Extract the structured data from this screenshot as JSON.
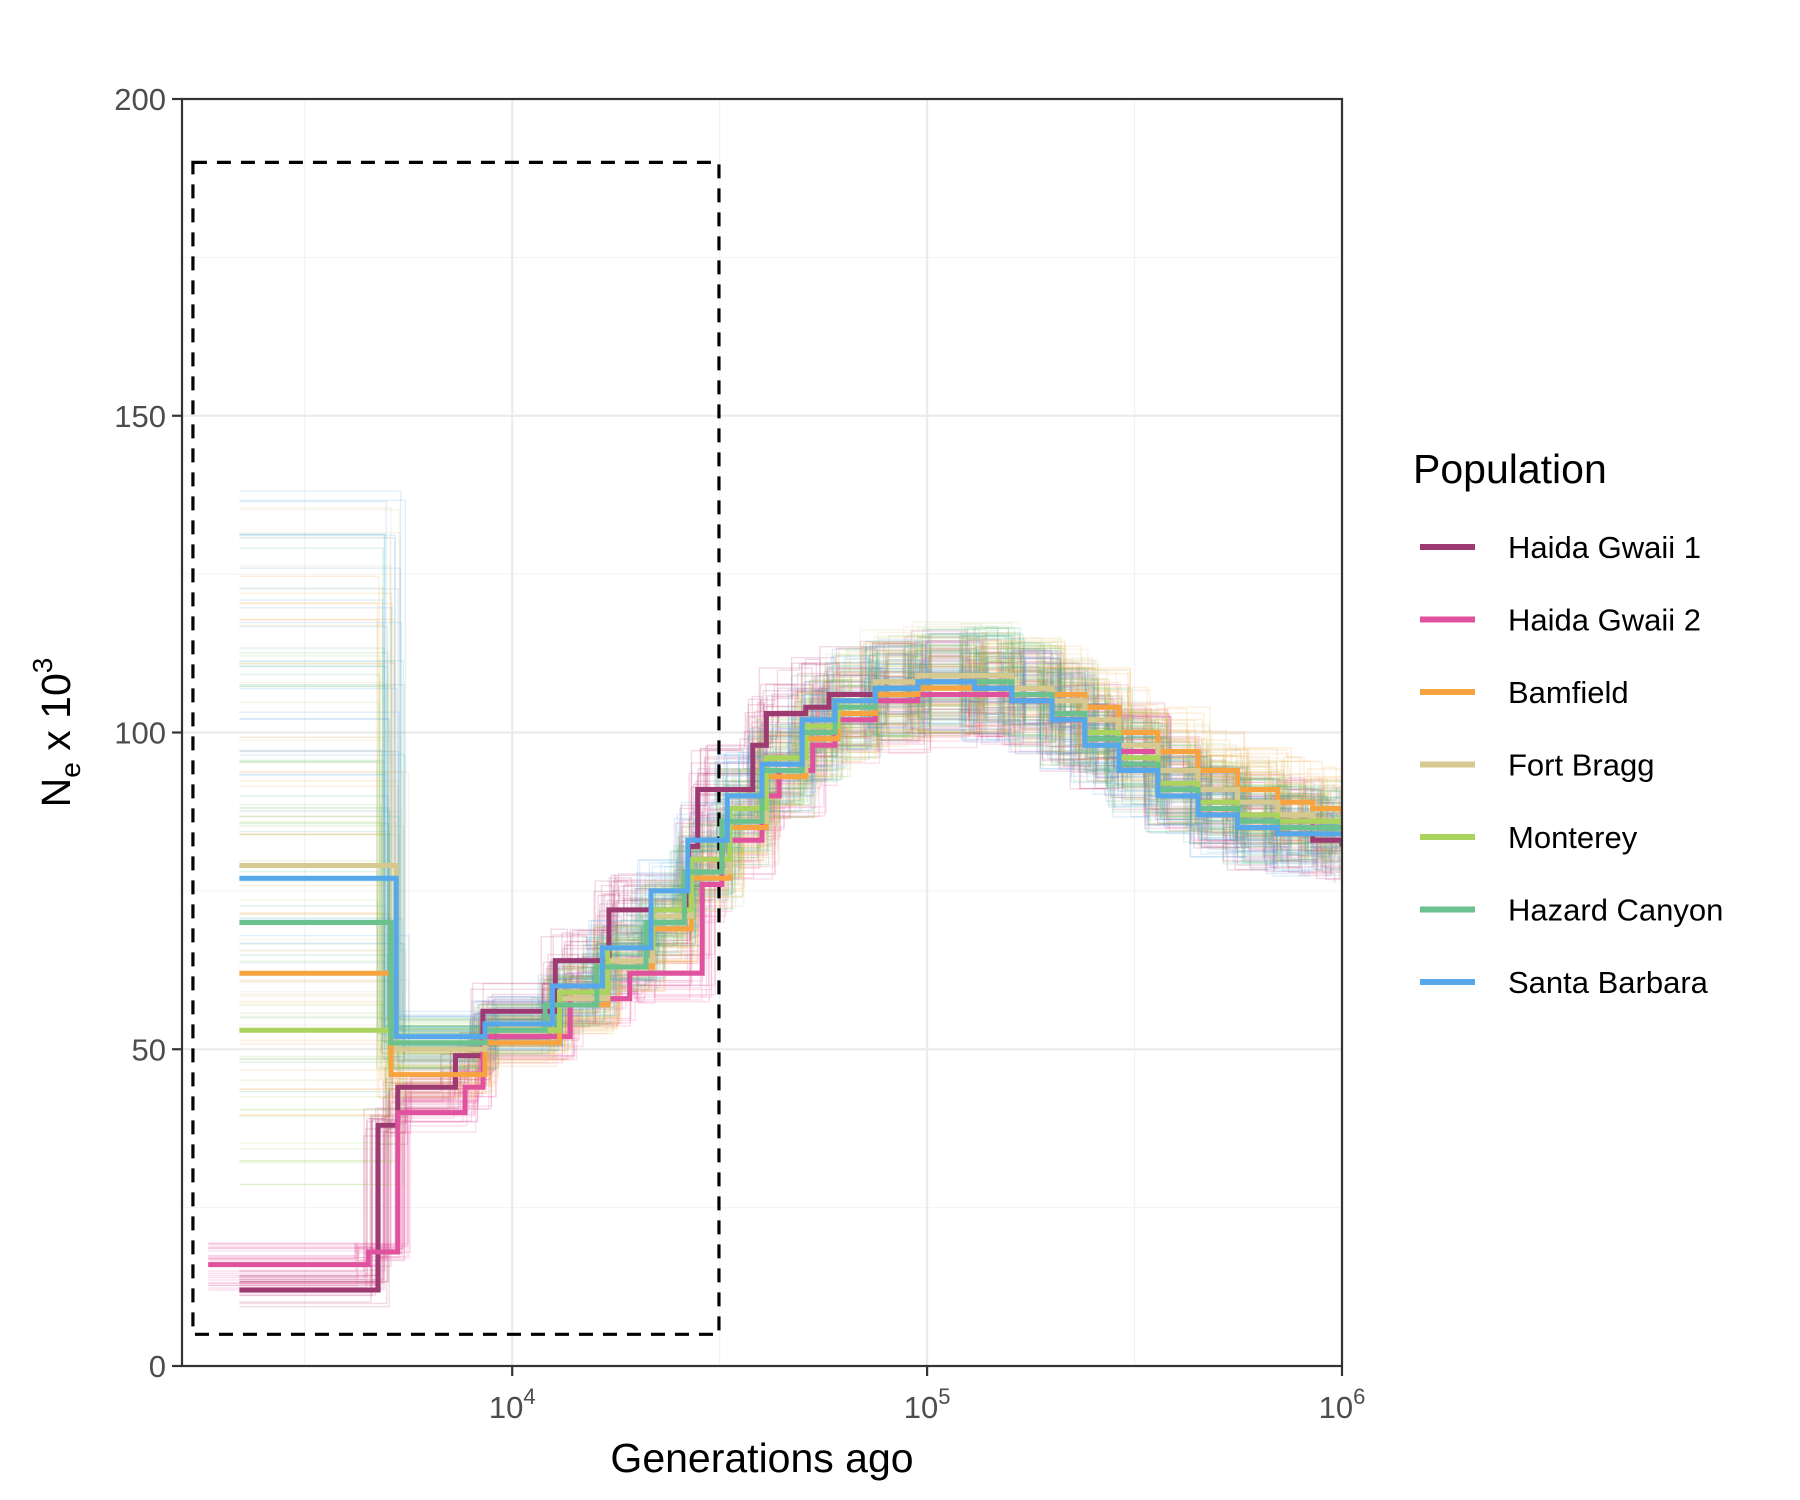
{
  "chart_data": {
    "type": "line",
    "subtype": "step",
    "xlabel": "Generations ago",
    "ylabel": {
      "base": "N",
      "subscript": "e",
      "middle": " x 10",
      "superscript": "3"
    },
    "x_scale": "log10",
    "xlim": [
      1600,
      1000000
    ],
    "ylim": [
      0,
      200
    ],
    "x_ticks": [
      {
        "value": 10000,
        "base": "10",
        "exp": "4"
      },
      {
        "value": 100000,
        "base": "10",
        "exp": "5"
      },
      {
        "value": 1000000,
        "base": "10",
        "exp": "6"
      }
    ],
    "y_ticks": [
      {
        "value": 0,
        "label": "0"
      },
      {
        "value": 50,
        "label": "50"
      },
      {
        "value": 100,
        "label": "100"
      },
      {
        "value": 150,
        "label": "150"
      },
      {
        "value": 200,
        "label": "200"
      }
    ],
    "grid": true,
    "legend": {
      "title": "Population",
      "position": "right"
    },
    "highlight_box": {
      "style": "dashed",
      "x_range": [
        1700,
        31500
      ],
      "y_range": [
        5,
        190
      ]
    },
    "series": [
      {
        "name": "Haida Gwaii 1",
        "color": "#9e3a72",
        "band_color": "#b0185f",
        "x": [
          2200,
          4750,
          5300,
          7300,
          8500,
          12700,
          14200,
          17100,
          18500,
          26600,
          28000,
          38000,
          41000,
          51000,
          58000,
          75000,
          95000,
          130000,
          160000,
          200000,
          240000,
          290000,
          360000,
          450000,
          560000,
          700000,
          850000,
          1000000
        ],
        "y": [
          12,
          38,
          44,
          49,
          56,
          64,
          64,
          72,
          72,
          82,
          91,
          98,
          103,
          104,
          106,
          107,
          108,
          107,
          105,
          102,
          99,
          95,
          91,
          88,
          85,
          84,
          83,
          82
        ]
      },
      {
        "name": "Haida Gwaii 2",
        "color": "#e0519e",
        "band_color": "#e8398f",
        "x": [
          1850,
          4500,
          5300,
          7700,
          8500,
          13800,
          15000,
          19200,
          20500,
          28700,
          32000,
          40000,
          44000,
          53000,
          60000,
          75000,
          95000,
          130000,
          160000,
          200000,
          240000,
          290000,
          360000,
          450000,
          560000,
          700000,
          850000,
          1000000
        ],
        "y": [
          16,
          18,
          40,
          44,
          52,
          58,
          58,
          62,
          62,
          76,
          83,
          90,
          94,
          98,
          102,
          105,
          106,
          106,
          105,
          103,
          100,
          97,
          92,
          89,
          87,
          86,
          85,
          85
        ]
      },
      {
        "name": "Bamfield",
        "color": "#f7a440",
        "band_color": "#f59e24",
        "x": [
          2200,
          5100,
          8600,
          13000,
          17000,
          21800,
          27000,
          33500,
          41000,
          51000,
          61000,
          75000,
          95000,
          130000,
          160000,
          200000,
          240000,
          290000,
          360000,
          450000,
          560000,
          700000,
          850000,
          1000000
        ],
        "y": [
          62,
          46,
          51,
          57,
          63,
          69,
          77,
          85,
          93,
          99,
          103,
          106,
          107,
          108,
          107,
          106,
          104,
          100,
          97,
          94,
          91,
          89,
          88,
          87
        ]
      },
      {
        "name": "Fort Bragg",
        "color": "#d6c98f",
        "band_color": "#cfc074",
        "x": [
          2200,
          5250,
          8600,
          13000,
          17000,
          21800,
          27000,
          33500,
          41000,
          51000,
          61000,
          75000,
          95000,
          130000,
          160000,
          200000,
          240000,
          290000,
          360000,
          450000,
          560000,
          700000,
          850000,
          1000000
        ],
        "y": [
          79,
          50,
          53,
          58,
          64,
          71,
          78,
          86,
          94,
          101,
          105,
          108,
          109,
          109,
          107,
          105,
          102,
          98,
          94,
          91,
          89,
          87,
          86,
          85
        ]
      },
      {
        "name": "Monterey",
        "color": "#aad45e",
        "band_color": "#92c83e",
        "x": [
          2200,
          5100,
          8600,
          13000,
          17000,
          21800,
          27000,
          33500,
          41000,
          51000,
          61000,
          75000,
          95000,
          130000,
          160000,
          200000,
          240000,
          290000,
          360000,
          450000,
          560000,
          700000,
          850000,
          1000000
        ],
        "y": [
          53,
          51,
          53,
          59,
          66,
          72,
          80,
          88,
          96,
          101,
          105,
          107,
          108,
          108,
          106,
          103,
          100,
          96,
          92,
          89,
          87,
          86,
          86,
          86
        ]
      },
      {
        "name": "Hazard Canyon",
        "color": "#6cc28e",
        "band_color": "#35b06a",
        "x": [
          2200,
          5100,
          8600,
          12000,
          16000,
          21000,
          26000,
          32000,
          40000,
          50000,
          60000,
          75000,
          95000,
          130000,
          160000,
          200000,
          240000,
          290000,
          360000,
          450000,
          560000,
          700000,
          850000,
          1000000
        ],
        "y": [
          70,
          51,
          53,
          57,
          63,
          70,
          78,
          86,
          94,
          100,
          104,
          107,
          108,
          108,
          106,
          103,
          99,
          95,
          91,
          88,
          86,
          85,
          85,
          85
        ]
      },
      {
        "name": "Santa Barbara",
        "color": "#56a8ea",
        "band_color": "#3d9be9",
        "x": [
          2200,
          5250,
          8600,
          12500,
          16500,
          21600,
          26500,
          33000,
          40000,
          50000,
          60000,
          75000,
          95000,
          130000,
          160000,
          200000,
          240000,
          290000,
          360000,
          450000,
          560000,
          700000,
          850000,
          1000000
        ],
        "y": [
          77,
          52,
          54,
          60,
          66,
          75,
          83,
          90,
          95,
          102,
          105,
          107,
          108,
          107,
          105,
          102,
          98,
          94,
          90,
          87,
          85,
          84,
          84,
          84
        ]
      }
    ]
  }
}
